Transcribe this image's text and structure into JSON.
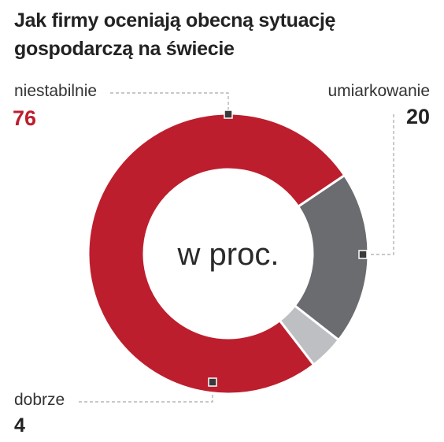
{
  "title_line1": "Jak firmy oceniają obecną sytuację",
  "title_line2": "gospodarczą na świecie",
  "chart_data": {
    "type": "pie",
    "variant": "donut",
    "title": "Jak firmy oceniają obecną sytuację gospodarczą na świecie",
    "center_label": "w proc.",
    "categories": [
      "niestabilnie",
      "umiarkowanie",
      "dobrze"
    ],
    "values": [
      76,
      20,
      4
    ],
    "colors": [
      "#bd1e2d",
      "#6b6c70",
      "#bebfc3"
    ],
    "value_colors": [
      "#bd1e2d",
      "#222222",
      "#222222"
    ]
  }
}
